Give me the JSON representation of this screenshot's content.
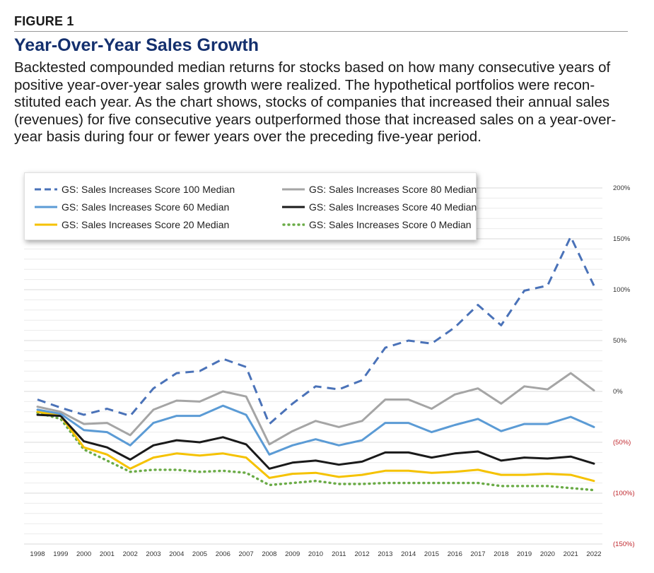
{
  "figure_label": "FIGURE 1",
  "chart_data": {
    "type": "line",
    "title": "Year-Over-Year Sales Growth",
    "subtitle": "Backtested compounded median returns for stocks based on how many consecutive years of\npositive year-over-year sales growth were realized. The hypothetical portfolios were recon-\nstituted each year. As the chart shows, stocks of companies that increased their annual sales\n(revenues) for five consecutive years outperformed those that increased sales on a year-over-\nyear basis during four or fewer years over the preceding five-year period.",
    "x": [
      "1998",
      "1999",
      "2000",
      "2001",
      "2002",
      "2003",
      "2004",
      "2005",
      "2006",
      "2007",
      "2008",
      "2009",
      "2010",
      "2011",
      "2012",
      "2013",
      "2014",
      "2015",
      "2016",
      "2017",
      "2018",
      "2019",
      "2020",
      "2021",
      "2022"
    ],
    "ylim": [
      -150,
      200
    ],
    "y_ticks": [
      200,
      150,
      100,
      50,
      0,
      -50,
      -100,
      -150
    ],
    "y_tick_labels": [
      "200%",
      "150%",
      "100%",
      "50%",
      "0%",
      "(50%)",
      "(100%)",
      "(150%)"
    ],
    "grid": true,
    "legend_position": "top-left",
    "series": [
      {
        "name": "GS: Sales Increases Score 100 Median",
        "color": "#4a72b8",
        "dash": "dashed",
        "values": [
          -8,
          -16,
          -23,
          -17,
          -24,
          3,
          18,
          20,
          32,
          24,
          -32,
          -12,
          5,
          2,
          11,
          43,
          50,
          47,
          63,
          85,
          65,
          99,
          104,
          152,
          104
        ]
      },
      {
        "name": "GS: Sales Increases Score 80 Median",
        "color": "#a5a5a5",
        "dash": "solid",
        "values": [
          -15,
          -20,
          -32,
          -31,
          -43,
          -18,
          -9,
          -10,
          0,
          -5,
          -52,
          -39,
          -29,
          -35,
          -29,
          -8,
          -8,
          -17,
          -3,
          3,
          -12,
          5,
          2,
          18,
          1
        ]
      },
      {
        "name": "GS: Sales Increases Score 60 Median",
        "color": "#5b9bd5",
        "dash": "solid",
        "values": [
          -18,
          -22,
          -38,
          -40,
          -53,
          -31,
          -24,
          -24,
          -14,
          -23,
          -62,
          -53,
          -47,
          -53,
          -48,
          -31,
          -31,
          -40,
          -33,
          -27,
          -39,
          -32,
          -32,
          -25,
          -35
        ]
      },
      {
        "name": "GS: Sales Increases Score 40 Median",
        "color": "#1a1a1a",
        "dash": "solid",
        "values": [
          -23,
          -24,
          -49,
          -55,
          -67,
          -53,
          -48,
          -50,
          -45,
          -52,
          -76,
          -70,
          -68,
          -72,
          -69,
          -60,
          -60,
          -65,
          -61,
          -59,
          -68,
          -65,
          -66,
          -64,
          -71
        ]
      },
      {
        "name": "GS: Sales Increases Score 20 Median",
        "color": "#f5c200",
        "dash": "solid",
        "values": [
          -20,
          -24,
          -55,
          -62,
          -76,
          -65,
          -61,
          -63,
          -61,
          -65,
          -85,
          -81,
          -80,
          -84,
          -82,
          -78,
          -78,
          -80,
          -79,
          -77,
          -82,
          -82,
          -81,
          -82,
          -88
        ]
      },
      {
        "name": "GS: Sales Increases Score 0 Median",
        "color": "#6aab46",
        "dash": "dotted",
        "values": [
          -21,
          -27,
          -57,
          -68,
          -79,
          -77,
          -77,
          -79,
          -78,
          -80,
          -92,
          -90,
          -88,
          -91,
          -91,
          -90,
          -90,
          -90,
          -90,
          -90,
          -93,
          -93,
          -93,
          -95,
          -97
        ]
      }
    ]
  }
}
